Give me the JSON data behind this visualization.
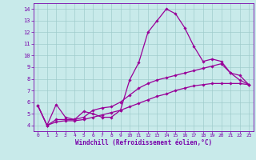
{
  "xlabel": "Windchill (Refroidissement éolien,°C)",
  "background_color": "#c8eaea",
  "grid_color": "#a0cccc",
  "line_color": "#990099",
  "line1": {
    "x": [
      0,
      1,
      2,
      3,
      4,
      5,
      6,
      7,
      8,
      9,
      10,
      11,
      12,
      13,
      14,
      15,
      16,
      17,
      18,
      19,
      20,
      21,
      22,
      23
    ],
    "y": [
      5.7,
      4.0,
      5.8,
      4.7,
      4.5,
      5.2,
      5.0,
      4.7,
      4.7,
      5.3,
      7.9,
      9.4,
      12.0,
      13.0,
      14.0,
      13.6,
      12.4,
      10.8,
      9.5,
      9.7,
      9.5,
      8.5,
      8.3,
      7.5
    ]
  },
  "line2": {
    "x": [
      0,
      1,
      2,
      3,
      4,
      5,
      6,
      7,
      8,
      9,
      10,
      11,
      12,
      13,
      14,
      15,
      16,
      17,
      18,
      19,
      20,
      21,
      22,
      23
    ],
    "y": [
      5.7,
      4.0,
      4.5,
      4.5,
      4.5,
      4.7,
      5.3,
      5.5,
      5.6,
      6.0,
      6.6,
      7.2,
      7.6,
      7.9,
      8.1,
      8.3,
      8.5,
      8.7,
      8.9,
      9.1,
      9.3,
      8.5,
      7.9,
      7.5
    ]
  },
  "line3": {
    "x": [
      0,
      1,
      2,
      3,
      4,
      5,
      6,
      7,
      8,
      9,
      10,
      11,
      12,
      13,
      14,
      15,
      16,
      17,
      18,
      19,
      20,
      21,
      22,
      23
    ],
    "y": [
      5.7,
      4.0,
      4.3,
      4.4,
      4.4,
      4.5,
      4.7,
      4.9,
      5.1,
      5.3,
      5.6,
      5.9,
      6.2,
      6.5,
      6.7,
      7.0,
      7.2,
      7.4,
      7.5,
      7.6,
      7.6,
      7.6,
      7.6,
      7.5
    ]
  },
  "xlim": [
    -0.5,
    23.5
  ],
  "ylim": [
    3.5,
    14.5
  ],
  "yticks": [
    4,
    5,
    6,
    7,
    8,
    9,
    10,
    11,
    12,
    13,
    14
  ],
  "xticks": [
    0,
    1,
    2,
    3,
    4,
    5,
    6,
    7,
    8,
    9,
    10,
    11,
    12,
    13,
    14,
    15,
    16,
    17,
    18,
    19,
    20,
    21,
    22,
    23
  ],
  "marker": "D",
  "markersize": 1.8,
  "linewidth": 0.9,
  "tick_fontsize": 4.5,
  "xlabel_fontsize": 5.5,
  "tick_color": "#7700aa",
  "spine_color": "#7700aa",
  "axis_bgcolor": "#c8eaea"
}
